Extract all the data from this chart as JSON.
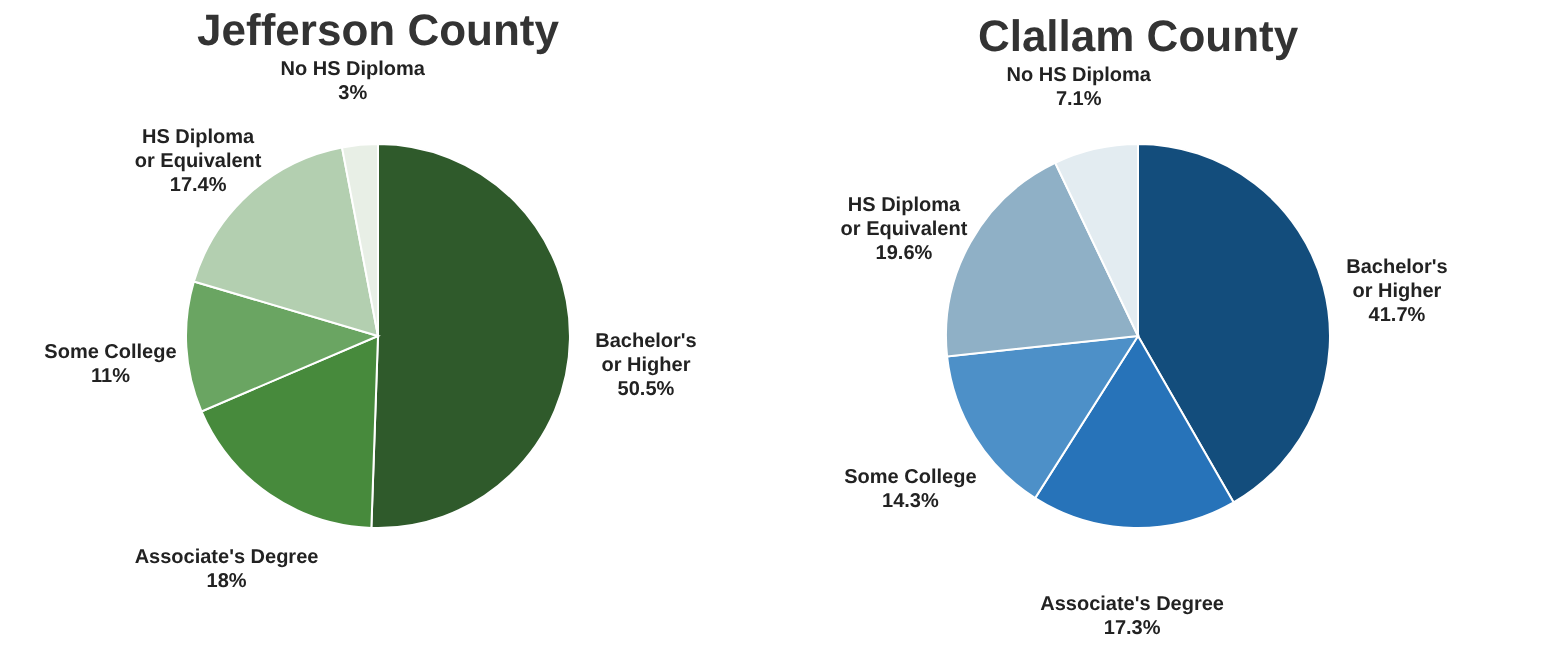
{
  "chart_data": [
    {
      "type": "pie",
      "title": "Jefferson County",
      "categories": [
        "Bachelor's\nor Higher",
        "Associate's Degree",
        "Some College",
        "HS Diploma\nor Equivalent",
        "No HS Diploma"
      ],
      "values": [
        50.5,
        18,
        11,
        17.4,
        3
      ],
      "value_labels": [
        "50.5%",
        "18%",
        "11%",
        "17.4%",
        "3%"
      ],
      "colors": [
        "#2f5a2b",
        "#478a3c",
        "#6aa562",
        "#b3cfb0",
        "#e8efe6"
      ]
    },
    {
      "type": "pie",
      "title": "Clallam County",
      "categories": [
        "Bachelor's\nor Higher",
        "Associate's Degree",
        "Some College",
        "HS Diploma\nor Equivalent",
        "No HS Diploma"
      ],
      "values": [
        41.7,
        17.3,
        14.3,
        19.6,
        7.1
      ],
      "value_labels": [
        "41.7%",
        "17.3%",
        "14.3%",
        "19.6%",
        "7.1%"
      ],
      "colors": [
        "#134d7c",
        "#2773b9",
        "#4d90c8",
        "#8fb0c6",
        "#e3ecf1"
      ]
    }
  ]
}
